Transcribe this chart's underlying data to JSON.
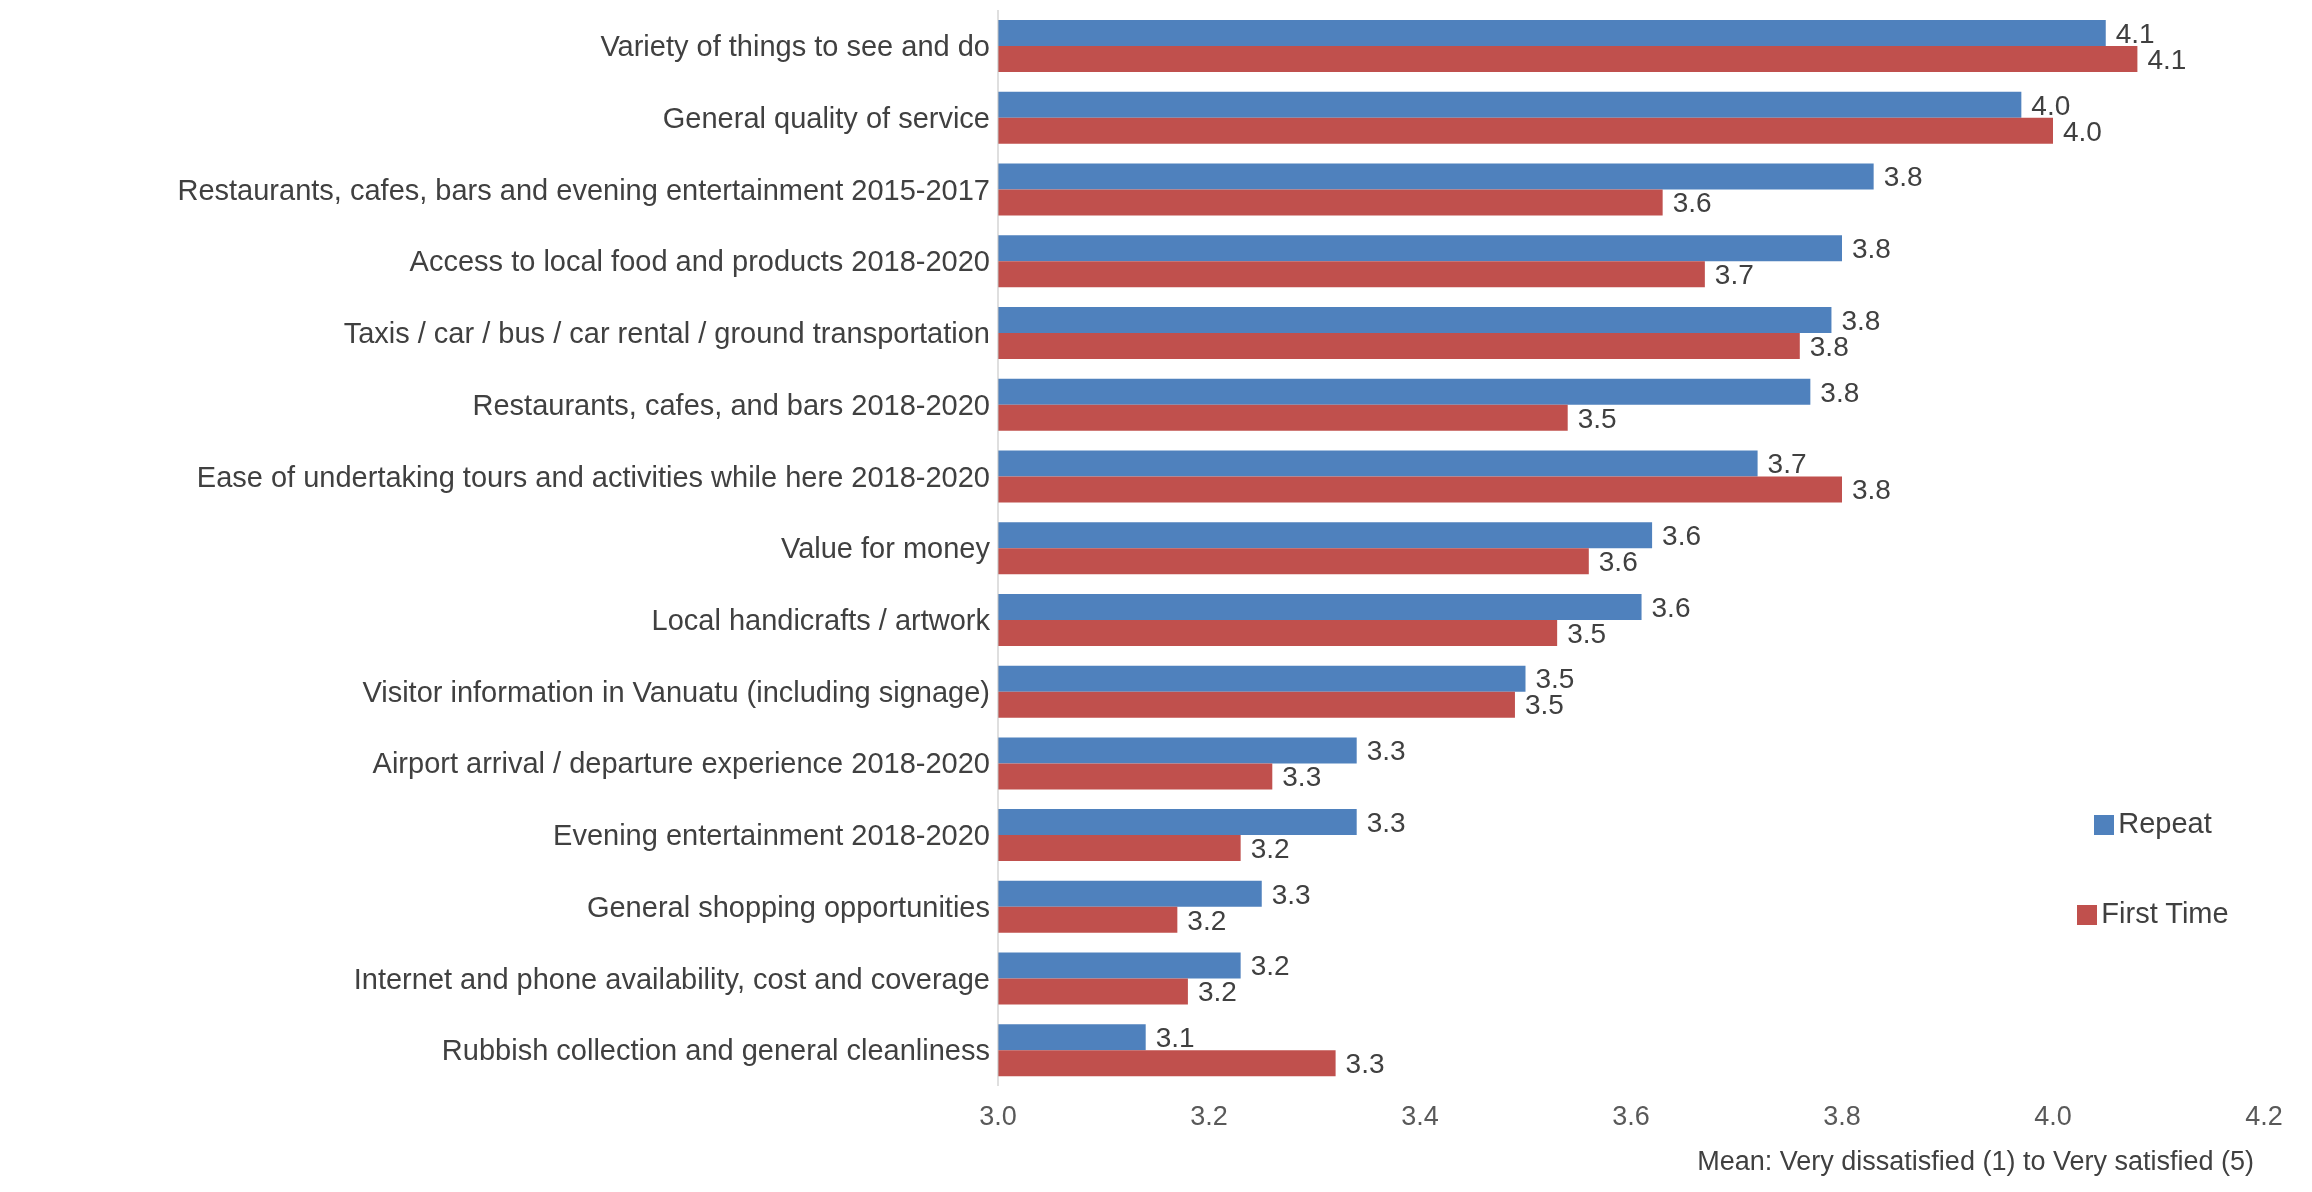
{
  "chart_data": {
    "type": "bar",
    "orientation": "horizontal",
    "xlabel": "Mean: Very dissatisfied (1) to Very satisfied (5)",
    "categories": [
      "Variety of things to see and do",
      "General quality of service",
      "Restaurants, cafes, bars and evening entertainment 2015-2017",
      "Access to local food and products 2018-2020",
      "Taxis / car / bus / car rental / ground transportation",
      "Restaurants, cafes, and bars 2018-2020",
      "Ease of undertaking tours and activities while here 2018-2020",
      "Value for money",
      "Local handicrafts / artwork",
      "Visitor information in Vanuatu (including signage)",
      "Airport arrival / departure experience 2018-2020",
      "Evening entertainment 2018-2020",
      "General shopping opportunities",
      "Internet and phone availability, cost and coverage",
      "Rubbish collection and general cleanliness"
    ],
    "series": [
      {
        "name": "Repeat",
        "color": "#4f81bd",
        "values": [
          4.05,
          3.97,
          3.83,
          3.8,
          3.79,
          3.77,
          3.72,
          3.62,
          3.61,
          3.5,
          3.34,
          3.34,
          3.25,
          3.23,
          3.14
        ],
        "value_labels": [
          "4.1",
          "4.0",
          "3.8",
          "3.8",
          "3.8",
          "3.8",
          "3.7",
          "3.6",
          "3.6",
          "3.5",
          "3.3",
          "3.3",
          "3.3",
          "3.2",
          "3.1"
        ]
      },
      {
        "name": "First Time",
        "color": "#c0504d",
        "values": [
          4.08,
          4.0,
          3.63,
          3.67,
          3.76,
          3.54,
          3.8,
          3.56,
          3.53,
          3.49,
          3.26,
          3.23,
          3.17,
          3.18,
          3.32
        ],
        "value_labels": [
          "4.1",
          "4.0",
          "3.6",
          "3.7",
          "3.8",
          "3.5",
          "3.8",
          "3.6",
          "3.5",
          "3.5",
          "3.3",
          "3.2",
          "3.2",
          "3.2",
          "3.3"
        ]
      }
    ],
    "xlim": [
      3.0,
      4.2
    ],
    "xticks": [
      {
        "value": 3.0,
        "label": "3.0"
      },
      {
        "value": 3.2,
        "label": "3.2"
      },
      {
        "value": 3.4,
        "label": "3.4"
      },
      {
        "value": 3.6,
        "label": "3.6"
      },
      {
        "value": 3.8,
        "label": "3.8"
      },
      {
        "value": 4.0,
        "label": "4.0"
      },
      {
        "value": 4.2,
        "label": "4.2"
      }
    ],
    "legend": "right",
    "grid": false
  }
}
